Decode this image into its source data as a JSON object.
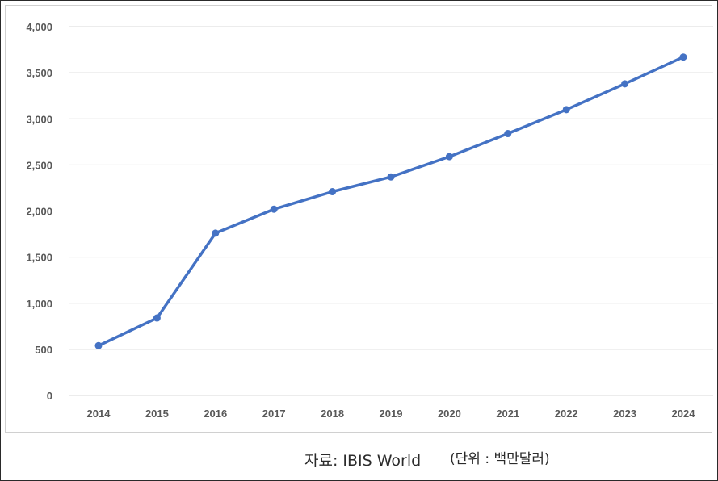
{
  "chart_data": {
    "type": "line",
    "categories": [
      "2014",
      "2015",
      "2016",
      "2017",
      "2018",
      "2019",
      "2020",
      "2021",
      "2022",
      "2023",
      "2024"
    ],
    "series": [
      {
        "values": [
          540,
          840,
          1760,
          2020,
          2210,
          2370,
          2590,
          2840,
          3100,
          3380,
          3670
        ]
      }
    ],
    "ylim": [
      0,
      4000
    ],
    "y_ticks": [
      "0",
      "500",
      "1,000",
      "1,500",
      "2,000",
      "2,500",
      "3,000",
      "3,500",
      "4,000"
    ],
    "y_tick_values": [
      0,
      500,
      1000,
      1500,
      2000,
      2500,
      3000,
      3500,
      4000
    ],
    "grid": true,
    "line_color": "#4472c4",
    "grid_color": "#d9d9d9"
  },
  "footer": {
    "source": "자료: IBIS World",
    "unit": "(단위 : 백만달러)"
  }
}
